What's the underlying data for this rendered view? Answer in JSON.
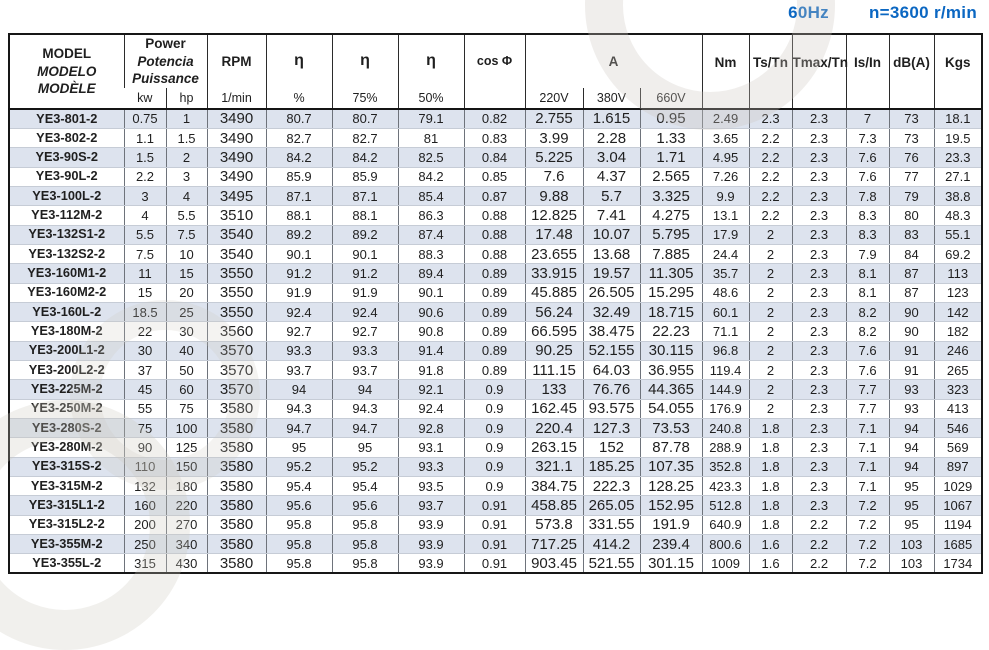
{
  "page_title": {
    "frequency": "60Hz",
    "speed": "n=3600 r/min",
    "accent_color": "#0b67c2"
  },
  "table": {
    "stripe_color": "#dde3ee",
    "header": {
      "model_lines": [
        "MODEL",
        "MODELO",
        "MODÈLE"
      ],
      "power_lines": [
        "Power",
        "Potencia",
        "Puissance"
      ],
      "power_units": [
        "kw",
        "hp"
      ],
      "rpm_label": "RPM",
      "rpm_unit": "1/min",
      "efficiency_symbol": "η",
      "efficiency_loads": [
        "%",
        "75%",
        "50%"
      ],
      "cos_phi_label": "cos Φ",
      "current_label": "A",
      "current_voltages": [
        "220V",
        "380V",
        "660V"
      ],
      "torque_label": "Nm",
      "ts_tn_label": "Ts/Tn",
      "tmax_tn_label": "Tmax/Tn",
      "is_in_label": "Is/In",
      "noise_label": "dB(A)",
      "weight_label": "Kgs"
    },
    "column_keys": [
      "model",
      "power_kw",
      "power_hp",
      "rpm",
      "eta_full",
      "eta_75",
      "eta_50",
      "cos_phi",
      "a_220v",
      "a_380v",
      "a_660v",
      "nm",
      "ts_tn",
      "tmax_tn",
      "is_in",
      "db_a",
      "kgs"
    ],
    "rows": [
      [
        "YE3-801-2",
        "0.75",
        "1",
        "3490",
        "80.7",
        "80.7",
        "79.1",
        "0.82",
        "2.755",
        "1.615",
        "0.95",
        "2.49",
        "2.3",
        "2.3",
        "7",
        "73",
        "18.1"
      ],
      [
        "YE3-802-2",
        "1.1",
        "1.5",
        "3490",
        "82.7",
        "82.7",
        "81",
        "0.83",
        "3.99",
        "2.28",
        "1.33",
        "3.65",
        "2.2",
        "2.3",
        "7.3",
        "73",
        "19.5"
      ],
      [
        "YE3-90S-2",
        "1.5",
        "2",
        "3490",
        "84.2",
        "84.2",
        "82.5",
        "0.84",
        "5.225",
        "3.04",
        "1.71",
        "4.95",
        "2.2",
        "2.3",
        "7.6",
        "76",
        "23.3"
      ],
      [
        "YE3-90L-2",
        "2.2",
        "3",
        "3490",
        "85.9",
        "85.9",
        "84.2",
        "0.85",
        "7.6",
        "4.37",
        "2.565",
        "7.26",
        "2.2",
        "2.3",
        "7.6",
        "77",
        "27.1"
      ],
      [
        "YE3-100L-2",
        "3",
        "4",
        "3495",
        "87.1",
        "87.1",
        "85.4",
        "0.87",
        "9.88",
        "5.7",
        "3.325",
        "9.9",
        "2.2",
        "2.3",
        "7.8",
        "79",
        "38.8"
      ],
      [
        "YE3-112M-2",
        "4",
        "5.5",
        "3510",
        "88.1",
        "88.1",
        "86.3",
        "0.88",
        "12.825",
        "7.41",
        "4.275",
        "13.1",
        "2.2",
        "2.3",
        "8.3",
        "80",
        "48.3"
      ],
      [
        "YE3-132S1-2",
        "5.5",
        "7.5",
        "3540",
        "89.2",
        "89.2",
        "87.4",
        "0.88",
        "17.48",
        "10.07",
        "5.795",
        "17.9",
        "2",
        "2.3",
        "8.3",
        "83",
        "55.1"
      ],
      [
        "YE3-132S2-2",
        "7.5",
        "10",
        "3540",
        "90.1",
        "90.1",
        "88.3",
        "0.88",
        "23.655",
        "13.68",
        "7.885",
        "24.4",
        "2",
        "2.3",
        "7.9",
        "84",
        "69.2"
      ],
      [
        "YE3-160M1-2",
        "11",
        "15",
        "3550",
        "91.2",
        "91.2",
        "89.4",
        "0.89",
        "33.915",
        "19.57",
        "11.305",
        "35.7",
        "2",
        "2.3",
        "8.1",
        "87",
        "113"
      ],
      [
        "YE3-160M2-2",
        "15",
        "20",
        "3550",
        "91.9",
        "91.9",
        "90.1",
        "0.89",
        "45.885",
        "26.505",
        "15.295",
        "48.6",
        "2",
        "2.3",
        "8.1",
        "87",
        "123"
      ],
      [
        "YE3-160L-2",
        "18.5",
        "25",
        "3550",
        "92.4",
        "92.4",
        "90.6",
        "0.89",
        "56.24",
        "32.49",
        "18.715",
        "60.1",
        "2",
        "2.3",
        "8.2",
        "90",
        "142"
      ],
      [
        "YE3-180M-2",
        "22",
        "30",
        "3560",
        "92.7",
        "92.7",
        "90.8",
        "0.89",
        "66.595",
        "38.475",
        "22.23",
        "71.1",
        "2",
        "2.3",
        "8.2",
        "90",
        "182"
      ],
      [
        "YE3-200L1-2",
        "30",
        "40",
        "3570",
        "93.3",
        "93.3",
        "91.4",
        "0.89",
        "90.25",
        "52.155",
        "30.115",
        "96.8",
        "2",
        "2.3",
        "7.6",
        "91",
        "246"
      ],
      [
        "YE3-200L2-2",
        "37",
        "50",
        "3570",
        "93.7",
        "93.7",
        "91.8",
        "0.89",
        "111.15",
        "64.03",
        "36.955",
        "119.4",
        "2",
        "2.3",
        "7.6",
        "91",
        "265"
      ],
      [
        "YE3-225M-2",
        "45",
        "60",
        "3570",
        "94",
        "94",
        "92.1",
        "0.9",
        "133",
        "76.76",
        "44.365",
        "144.9",
        "2",
        "2.3",
        "7.7",
        "93",
        "323"
      ],
      [
        "YE3-250M-2",
        "55",
        "75",
        "3580",
        "94.3",
        "94.3",
        "92.4",
        "0.9",
        "162.45",
        "93.575",
        "54.055",
        "176.9",
        "2",
        "2.3",
        "7.7",
        "93",
        "413"
      ],
      [
        "YE3-280S-2",
        "75",
        "100",
        "3580",
        "94.7",
        "94.7",
        "92.8",
        "0.9",
        "220.4",
        "127.3",
        "73.53",
        "240.8",
        "1.8",
        "2.3",
        "7.1",
        "94",
        "546"
      ],
      [
        "YE3-280M-2",
        "90",
        "125",
        "3580",
        "95",
        "95",
        "93.1",
        "0.9",
        "263.15",
        "152",
        "87.78",
        "288.9",
        "1.8",
        "2.3",
        "7.1",
        "94",
        "569"
      ],
      [
        "YE3-315S-2",
        "110",
        "150",
        "3580",
        "95.2",
        "95.2",
        "93.3",
        "0.9",
        "321.1",
        "185.25",
        "107.35",
        "352.8",
        "1.8",
        "2.3",
        "7.1",
        "94",
        "897"
      ],
      [
        "YE3-315M-2",
        "132",
        "180",
        "3580",
        "95.4",
        "95.4",
        "93.5",
        "0.9",
        "384.75",
        "222.3",
        "128.25",
        "423.3",
        "1.8",
        "2.3",
        "7.1",
        "95",
        "1029"
      ],
      [
        "YE3-315L1-2",
        "160",
        "220",
        "3580",
        "95.6",
        "95.6",
        "93.7",
        "0.91",
        "458.85",
        "265.05",
        "152.95",
        "512.8",
        "1.8",
        "2.3",
        "7.2",
        "95",
        "1067"
      ],
      [
        "YE3-315L2-2",
        "200",
        "270",
        "3580",
        "95.8",
        "95.8",
        "93.9",
        "0.91",
        "573.8",
        "331.55",
        "191.9",
        "640.9",
        "1.8",
        "2.2",
        "7.2",
        "95",
        "1194"
      ],
      [
        "YE3-355M-2",
        "250",
        "340",
        "3580",
        "95.8",
        "95.8",
        "93.9",
        "0.91",
        "717.25",
        "414.2",
        "239.4",
        "800.6",
        "1.6",
        "2.2",
        "7.2",
        "103",
        "1685"
      ],
      [
        "YE3-355L-2",
        "315",
        "430",
        "3580",
        "95.8",
        "95.8",
        "93.9",
        "0.91",
        "903.45",
        "521.55",
        "301.15",
        "1009",
        "1.6",
        "2.2",
        "7.2",
        "103",
        "1734"
      ]
    ]
  }
}
